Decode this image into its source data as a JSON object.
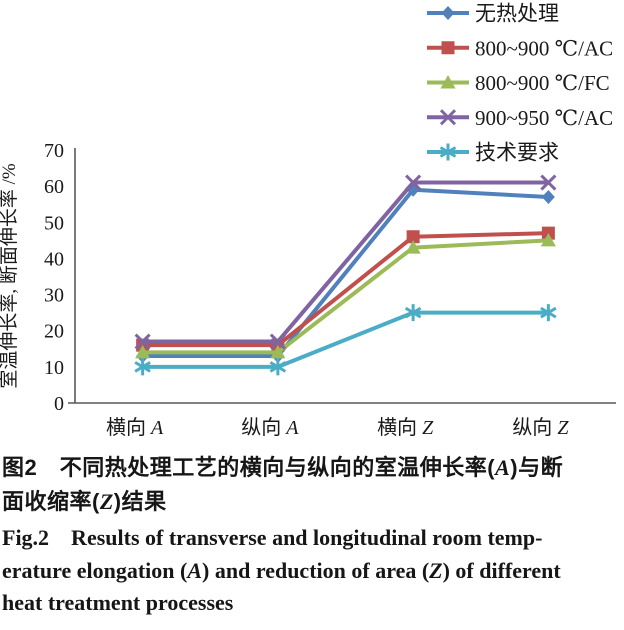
{
  "figure": {
    "caption_cn_parts": [
      {
        "t": "图2　不同热处理工艺的横向与纵向的室温伸长率("
      },
      {
        "t": "A",
        "i": true
      },
      {
        "t": ")与断"
      },
      {
        "br": true
      },
      {
        "t": "面收缩率("
      },
      {
        "t": "Z",
        "i": true
      },
      {
        "t": ")结果"
      }
    ],
    "caption_en_parts": [
      {
        "t": "Fig.2　Results of transverse and longitudinal room temp-"
      },
      {
        "br": true
      },
      {
        "t": "erature elongation ("
      },
      {
        "t": "A",
        "i": true
      },
      {
        "t": ") and reduction of area ("
      },
      {
        "t": "Z",
        "i": true
      },
      {
        "t": ") of different"
      },
      {
        "br": true
      },
      {
        "t": "heat treatment processes"
      }
    ]
  },
  "chart_data": {
    "type": "line",
    "title": "",
    "categories": [
      "横向 A",
      "纵向 A",
      "横向 Z",
      "纵向 Z"
    ],
    "series": [
      {
        "name": "无热处理",
        "color": "#4F81BD",
        "marker": "diamond",
        "values": [
          13,
          13,
          59,
          57
        ]
      },
      {
        "name": "800~900 ℃/AC",
        "color": "#C0504D",
        "marker": "square",
        "values": [
          16,
          16,
          46,
          47
        ]
      },
      {
        "name": "800~900 ℃/FC",
        "color": "#9BBB59",
        "marker": "triangle",
        "values": [
          14,
          14,
          43,
          45
        ]
      },
      {
        "name": "900~950 ℃/AC",
        "color": "#8064A2",
        "marker": "x",
        "values": [
          17,
          17,
          61,
          61
        ]
      },
      {
        "name": "技术要求",
        "color": "#4BACC6",
        "marker": "asterisk",
        "values": [
          10,
          10,
          25,
          25
        ]
      }
    ],
    "xlabel": "",
    "ylabel": "室温伸长率, 断面伸长率 /%",
    "ylim": [
      0,
      70
    ],
    "yticks": [
      0,
      10,
      20,
      30,
      40,
      50,
      60,
      70
    ],
    "grid": false,
    "legend_position": "top-right",
    "axis_color": "#595959",
    "line_width": 4
  }
}
